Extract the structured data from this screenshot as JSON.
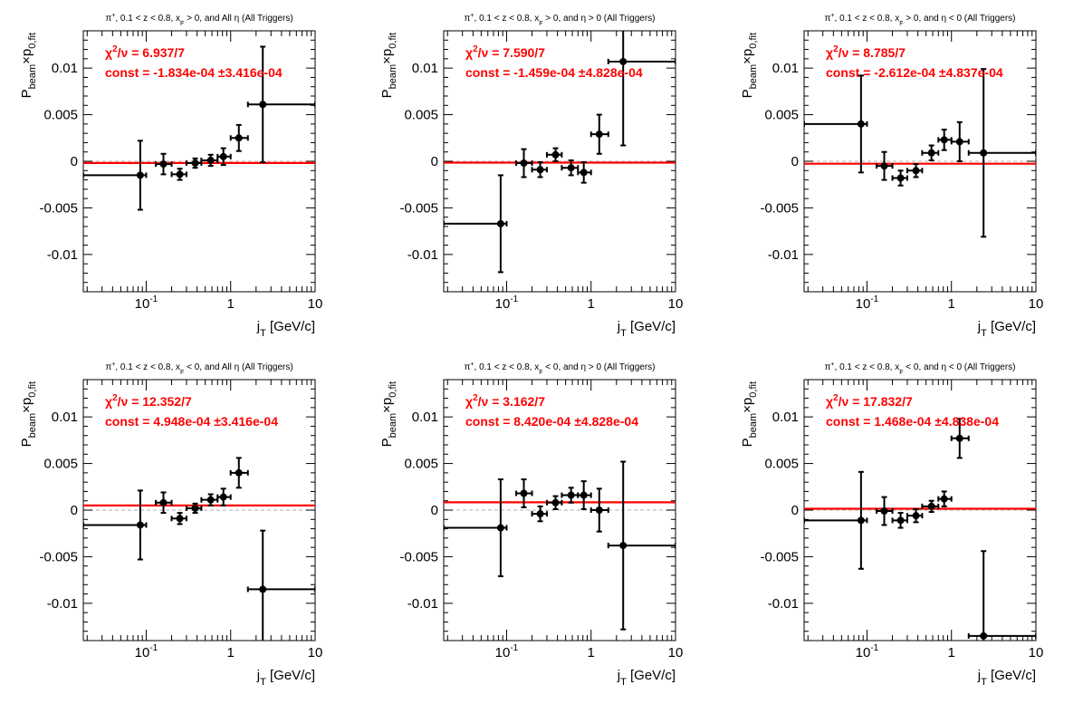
{
  "chart_data": [
    {
      "type": "scatter",
      "title": "π⁺, 0.1 < z < 0.8, x_F > 0, and All η (All Triggers)",
      "title_parts": [
        "π",
        "+",
        ", 0.1 < z < 0.8, x",
        "F",
        " > 0, and All ",
        "η",
        " (All Triggers)"
      ],
      "xlabel": "j_T [GeV/c]",
      "xlabel_main": "j",
      "xlabel_sub": "T",
      "xlabel_rest": " [GeV/c]",
      "ylabel": "P_beam × p_0,fit",
      "ylabel_p": "P",
      "ylabel_beam": "beam",
      "ylabel_x": "×p",
      "ylabel_fit": "0,fit",
      "xscale": "log",
      "xlim": [
        0.018,
        10
      ],
      "ylim": [
        -0.014,
        0.014
      ],
      "points": [
        {
          "x": 0.085,
          "y": -0.0015,
          "xlo": 0.018,
          "xhi": 0.1,
          "err": 0.0037
        },
        {
          "x": 0.16,
          "y": -0.0003,
          "xlo": 0.13,
          "xhi": 0.2,
          "err": 0.0011
        },
        {
          "x": 0.25,
          "y": -0.0014,
          "xlo": 0.2,
          "xhi": 0.3,
          "err": 0.0006
        },
        {
          "x": 0.38,
          "y": -0.0002,
          "xlo": 0.3,
          "xhi": 0.45,
          "err": 0.0005
        },
        {
          "x": 0.58,
          "y": 0.0001,
          "xlo": 0.45,
          "xhi": 0.7,
          "err": 0.0006
        },
        {
          "x": 0.82,
          "y": 0.0005,
          "xlo": 0.7,
          "xhi": 1.0,
          "err": 0.0009
        },
        {
          "x": 1.25,
          "y": 0.0025,
          "xlo": 1.0,
          "xhi": 1.6,
          "err": 0.0014
        },
        {
          "x": 2.4,
          "y": 0.0061,
          "xlo": 1.6,
          "xhi": 10,
          "err": 0.0062
        }
      ],
      "fit_const": -0.0001834,
      "chi2_text": "= 6.937/7",
      "const_text": "const = -1.834e-04  ±3.416e-04"
    },
    {
      "type": "scatter",
      "title": "π⁺, 0.1 < z < 0.8, x_F > 0, and η > 0 (All Triggers)",
      "title_parts": [
        "π",
        "+",
        ", 0.1 < z < 0.8, x",
        "F",
        " > 0, and ",
        "η",
        " > 0 (All Triggers)"
      ],
      "xlabel": "j_T [GeV/c]",
      "xlabel_main": "j",
      "xlabel_sub": "T",
      "xlabel_rest": " [GeV/c]",
      "ylabel": "P_beam × p_0,fit",
      "ylabel_p": "P",
      "ylabel_beam": "beam",
      "ylabel_x": "×p",
      "ylabel_fit": "0,fit",
      "xscale": "log",
      "xlim": [
        0.018,
        10
      ],
      "ylim": [
        -0.014,
        0.014
      ],
      "points": [
        {
          "x": 0.085,
          "y": -0.0067,
          "xlo": 0.018,
          "xhi": 0.1,
          "err": 0.0052
        },
        {
          "x": 0.16,
          "y": -0.0002,
          "xlo": 0.13,
          "xhi": 0.2,
          "err": 0.0015
        },
        {
          "x": 0.25,
          "y": -0.0009,
          "xlo": 0.2,
          "xhi": 0.3,
          "err": 0.0008
        },
        {
          "x": 0.38,
          "y": 0.0007,
          "xlo": 0.3,
          "xhi": 0.45,
          "err": 0.0007
        },
        {
          "x": 0.58,
          "y": -0.0007,
          "xlo": 0.45,
          "xhi": 0.7,
          "err": 0.0008
        },
        {
          "x": 0.82,
          "y": -0.0012,
          "xlo": 0.7,
          "xhi": 1.0,
          "err": 0.0011
        },
        {
          "x": 1.25,
          "y": 0.0029,
          "xlo": 1.0,
          "xhi": 1.6,
          "err": 0.0021
        },
        {
          "x": 2.4,
          "y": 0.0107,
          "xlo": 1.6,
          "xhi": 10,
          "err": 0.009
        }
      ],
      "fit_const": -0.0001459,
      "chi2_text": "= 7.590/7",
      "const_text": "const = -1.459e-04  ±4.828e-04"
    },
    {
      "type": "scatter",
      "title": "π⁺, 0.1 < z < 0.8, x_F > 0, and η < 0 (All Triggers)",
      "title_parts": [
        "π",
        "+",
        ", 0.1 < z < 0.8, x",
        "F",
        " > 0, and ",
        "η",
        " < 0 (All Triggers)"
      ],
      "xlabel": "j_T [GeV/c]",
      "xlabel_main": "j",
      "xlabel_sub": "T",
      "xlabel_rest": " [GeV/c]",
      "ylabel": "P_beam × p_0,fit",
      "ylabel_p": "P",
      "ylabel_beam": "beam",
      "ylabel_x": "×p",
      "ylabel_fit": "0,fit",
      "xscale": "log",
      "xlim": [
        0.018,
        10
      ],
      "ylim": [
        -0.014,
        0.014
      ],
      "points": [
        {
          "x": 0.085,
          "y": 0.004,
          "xlo": 0.018,
          "xhi": 0.1,
          "err": 0.0052
        },
        {
          "x": 0.16,
          "y": -0.0005,
          "xlo": 0.13,
          "xhi": 0.2,
          "err": 0.0015
        },
        {
          "x": 0.25,
          "y": -0.0018,
          "xlo": 0.2,
          "xhi": 0.3,
          "err": 0.0008
        },
        {
          "x": 0.38,
          "y": -0.001,
          "xlo": 0.3,
          "xhi": 0.45,
          "err": 0.0007
        },
        {
          "x": 0.58,
          "y": 0.0009,
          "xlo": 0.45,
          "xhi": 0.7,
          "err": 0.0008
        },
        {
          "x": 0.82,
          "y": 0.0023,
          "xlo": 0.7,
          "xhi": 1.0,
          "err": 0.0011
        },
        {
          "x": 1.25,
          "y": 0.0021,
          "xlo": 1.0,
          "xhi": 1.6,
          "err": 0.0021
        },
        {
          "x": 2.4,
          "y": 0.0009,
          "xlo": 1.6,
          "xhi": 10,
          "err": 0.009
        }
      ],
      "fit_const": -0.0002612,
      "chi2_text": "= 8.785/7",
      "const_text": "const = -2.612e-04  ±4.837e-04"
    },
    {
      "type": "scatter",
      "title": "π⁺, 0.1 < z < 0.8, x_F < 0, and All η (All Triggers)",
      "title_parts": [
        "π",
        "+",
        ", 0.1 < z < 0.8, x",
        "F",
        " < 0, and All ",
        "η",
        " (All Triggers)"
      ],
      "xlabel": "j_T [GeV/c]",
      "xlabel_main": "j",
      "xlabel_sub": "T",
      "xlabel_rest": " [GeV/c]",
      "ylabel": "P_beam × p_0,fit",
      "ylabel_p": "P",
      "ylabel_beam": "beam",
      "ylabel_x": "×p",
      "ylabel_fit": "0,fit",
      "xscale": "log",
      "xlim": [
        0.018,
        10
      ],
      "ylim": [
        -0.014,
        0.014
      ],
      "points": [
        {
          "x": 0.085,
          "y": -0.0016,
          "xlo": 0.018,
          "xhi": 0.1,
          "err": 0.0037
        },
        {
          "x": 0.16,
          "y": 0.0008,
          "xlo": 0.13,
          "xhi": 0.2,
          "err": 0.0011
        },
        {
          "x": 0.25,
          "y": -0.0009,
          "xlo": 0.2,
          "xhi": 0.3,
          "err": 0.0006
        },
        {
          "x": 0.38,
          "y": 0.0002,
          "xlo": 0.3,
          "xhi": 0.45,
          "err": 0.0005
        },
        {
          "x": 0.58,
          "y": 0.0011,
          "xlo": 0.45,
          "xhi": 0.7,
          "err": 0.0006
        },
        {
          "x": 0.82,
          "y": 0.0014,
          "xlo": 0.7,
          "xhi": 1.0,
          "err": 0.0009
        },
        {
          "x": 1.25,
          "y": 0.004,
          "xlo": 1.0,
          "xhi": 1.6,
          "err": 0.0016
        },
        {
          "x": 2.4,
          "y": -0.0085,
          "xlo": 1.6,
          "xhi": 10,
          "err": 0.0063
        }
      ],
      "fit_const": 0.0004948,
      "chi2_text": "= 12.352/7",
      "const_text": "const = 4.948e-04  ±3.416e-04"
    },
    {
      "type": "scatter",
      "title": "π⁺, 0.1 < z < 0.8, x_F < 0, and η > 0 (All Triggers)",
      "title_parts": [
        "π",
        "+",
        ", 0.1 < z < 0.8, x",
        "F",
        " < 0, and ",
        "η",
        " > 0 (All Triggers)"
      ],
      "xlabel": "j_T [GeV/c]",
      "xlabel_main": "j",
      "xlabel_sub": "T",
      "xlabel_rest": " [GeV/c]",
      "ylabel": "P_beam × p_0,fit",
      "ylabel_p": "P",
      "ylabel_beam": "beam",
      "ylabel_x": "×p",
      "ylabel_fit": "0,fit",
      "xscale": "log",
      "xlim": [
        0.018,
        10
      ],
      "ylim": [
        -0.014,
        0.014
      ],
      "points": [
        {
          "x": 0.085,
          "y": -0.0019,
          "xlo": 0.018,
          "xhi": 0.1,
          "err": 0.0052
        },
        {
          "x": 0.16,
          "y": 0.0018,
          "xlo": 0.13,
          "xhi": 0.2,
          "err": 0.0015
        },
        {
          "x": 0.25,
          "y": -0.0004,
          "xlo": 0.2,
          "xhi": 0.3,
          "err": 0.0008
        },
        {
          "x": 0.38,
          "y": 0.0008,
          "xlo": 0.3,
          "xhi": 0.45,
          "err": 0.0007
        },
        {
          "x": 0.58,
          "y": 0.0016,
          "xlo": 0.45,
          "xhi": 0.7,
          "err": 0.0008
        },
        {
          "x": 0.82,
          "y": 0.0016,
          "xlo": 0.7,
          "xhi": 1.0,
          "err": 0.0015
        },
        {
          "x": 1.25,
          "y": 0.0,
          "xlo": 1.0,
          "xhi": 1.6,
          "err": 0.0023
        },
        {
          "x": 2.4,
          "y": -0.0038,
          "xlo": 1.6,
          "xhi": 10,
          "err": 0.009
        }
      ],
      "fit_const": 0.000842,
      "chi2_text": "= 3.162/7",
      "const_text": "const = 8.420e-04  ±4.828e-04"
    },
    {
      "type": "scatter",
      "title": "π⁺, 0.1 < z < 0.8, x_F < 0, and η < 0 (All Triggers)",
      "title_parts": [
        "π",
        "+",
        ", 0.1 < z < 0.8, x",
        "F",
        " < 0, and ",
        "η",
        " < 0 (All Triggers)"
      ],
      "xlabel": "j_T [GeV/c]",
      "xlabel_main": "j",
      "xlabel_sub": "T",
      "xlabel_rest": " [GeV/c]",
      "ylabel": "P_beam × p_0,fit",
      "ylabel_p": "P",
      "ylabel_beam": "beam",
      "ylabel_x": "×p",
      "ylabel_fit": "0,fit",
      "xscale": "log",
      "xlim": [
        0.018,
        10
      ],
      "ylim": [
        -0.014,
        0.014
      ],
      "points": [
        {
          "x": 0.085,
          "y": -0.0011,
          "xlo": 0.018,
          "xhi": 0.1,
          "err": 0.0052
        },
        {
          "x": 0.16,
          "y": -0.0001,
          "xlo": 0.13,
          "xhi": 0.2,
          "err": 0.0015
        },
        {
          "x": 0.25,
          "y": -0.0011,
          "xlo": 0.2,
          "xhi": 0.3,
          "err": 0.0008
        },
        {
          "x": 0.38,
          "y": -0.0006,
          "xlo": 0.3,
          "xhi": 0.45,
          "err": 0.0007
        },
        {
          "x": 0.58,
          "y": 0.0004,
          "xlo": 0.45,
          "xhi": 0.7,
          "err": 0.0006
        },
        {
          "x": 0.82,
          "y": 0.0012,
          "xlo": 0.7,
          "xhi": 1.0,
          "err": 0.0008
        },
        {
          "x": 1.25,
          "y": 0.0077,
          "xlo": 1.0,
          "xhi": 1.6,
          "err": 0.0021
        },
        {
          "x": 2.4,
          "y": -0.0135,
          "xlo": 1.6,
          "xhi": 10,
          "err": 0.0091
        }
      ],
      "fit_const": 0.0001468,
      "chi2_text": "= 17.832/7",
      "const_text": "const = 1.468e-04  ±4.838e-04"
    }
  ],
  "ytick_labels": [
    "0.01",
    "0.005",
    "0",
    "-0.005",
    "-0.01"
  ],
  "ytick_values": [
    0.01,
    0.005,
    0,
    -0.005,
    -0.01
  ],
  "xtick_labels": [
    {
      "value": 0.1,
      "base": "10",
      "exp": "-1"
    },
    {
      "value": 1,
      "base": "1",
      "exp": ""
    },
    {
      "value": 10,
      "base": "10",
      "exp": ""
    }
  ],
  "chi_symbol": "χ",
  "chi_exp": "2",
  "nu_text": "/ν ",
  "colors": {
    "fit": "#ff0000",
    "data": "#000000",
    "zero_line": "#c0c0c0",
    "frame": "#000000",
    "stats": "#ff0000"
  }
}
